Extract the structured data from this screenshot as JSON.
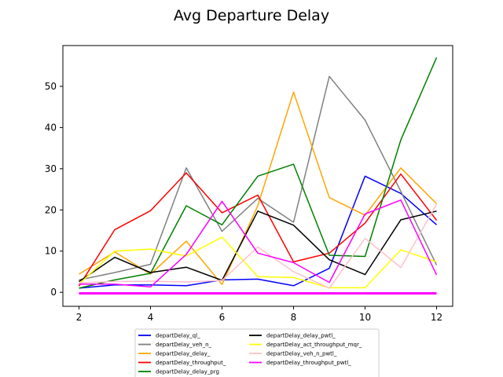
{
  "chart_data": {
    "type": "line",
    "title": "Avg Departure Delay",
    "xlabel": "",
    "ylabel": "",
    "x": [
      2,
      3,
      4,
      5,
      6,
      7,
      8,
      9,
      10,
      11,
      12
    ],
    "xlim": [
      1.55,
      12.45
    ],
    "ylim": [
      -3.4,
      59.9
    ],
    "xticks": [
      2,
      4,
      6,
      8,
      10,
      12
    ],
    "yticks": [
      0,
      10,
      20,
      30,
      40,
      50
    ],
    "grid": false,
    "legend_position": "bottom-center",
    "series": [
      {
        "name": "departDelay_ql_",
        "color": "#0000ff",
        "values": [
          1.0,
          1.8,
          1.8,
          1.6,
          3.0,
          3.2,
          1.6,
          5.8,
          28.2,
          24.0,
          16.4
        ]
      },
      {
        "name": "departDelay_veh_n_",
        "color": "#808080",
        "values": [
          3.0,
          4.8,
          6.8,
          30.2,
          14.8,
          22.8,
          17.0,
          52.4,
          41.8,
          24.5,
          6.6
        ]
      },
      {
        "name": "departDelay_delay_",
        "color": "#ffa500",
        "values": [
          4.4,
          9.8,
          4.4,
          12.4,
          1.9,
          21.0,
          48.6,
          23.0,
          18.7,
          30.2,
          21.5
        ]
      },
      {
        "name": "departDelay_throughput_",
        "color": "#ff0000",
        "values": [
          1.5,
          15.2,
          19.8,
          29.0,
          19.3,
          23.6,
          7.4,
          9.5,
          16.8,
          28.7,
          17.5
        ]
      },
      {
        "name": "departDelay_delay_prg",
        "color": "#008000",
        "values": [
          1.0,
          3.0,
          4.6,
          21.0,
          16.4,
          28.2,
          31.1,
          9.0,
          8.7,
          37.0,
          57.0
        ]
      },
      {
        "name": "departDelay_delay_pwtl_",
        "color": "#000000",
        "values": [
          2.6,
          8.5,
          4.8,
          6.1,
          2.9,
          19.7,
          16.3,
          7.9,
          4.3,
          17.6,
          19.7
        ]
      },
      {
        "name": "departDelay_act_throughput_mqr_",
        "color": "#ffff00",
        "values": [
          2.0,
          10.0,
          10.5,
          8.8,
          13.4,
          3.8,
          3.6,
          1.1,
          1.1,
          10.3,
          7.4
        ]
      },
      {
        "name": "departDelay_veh_n_pwtl_",
        "color": "#ffc0cb",
        "values": [
          2.3,
          2.6,
          2.7,
          2.5,
          2.9,
          11.0,
          5.0,
          1.0,
          13.1,
          6.0,
          21.4
        ]
      },
      {
        "name": "departDelay_throughput_pwtl_",
        "color": "#ff00ff",
        "values": [
          2.0,
          2.0,
          1.3,
          9.2,
          22.1,
          9.5,
          7.2,
          2.4,
          19.0,
          22.4,
          4.2
        ]
      },
      {
        "name": "",
        "color": "#ff00ff",
        "values": [
          -0.1,
          -0.1,
          -0.1,
          -0.1,
          -0.1,
          -0.1,
          -0.1,
          -0.1,
          -0.1,
          -0.1,
          -0.1
        ]
      },
      {
        "name": "",
        "color": "#ff00ff",
        "values": [
          -0.4,
          -0.4,
          -0.4,
          -0.4,
          -0.4,
          -0.4,
          -0.4,
          -0.4,
          -0.4,
          -0.4,
          -0.4
        ]
      },
      {
        "name": "",
        "color": "#ff00ff",
        "values": [
          -0.3,
          -0.3,
          -0.3,
          -0.2,
          -0.3,
          -0.3,
          -0.3,
          -0.3,
          -0.3,
          -0.3,
          -0.3
        ]
      }
    ]
  }
}
